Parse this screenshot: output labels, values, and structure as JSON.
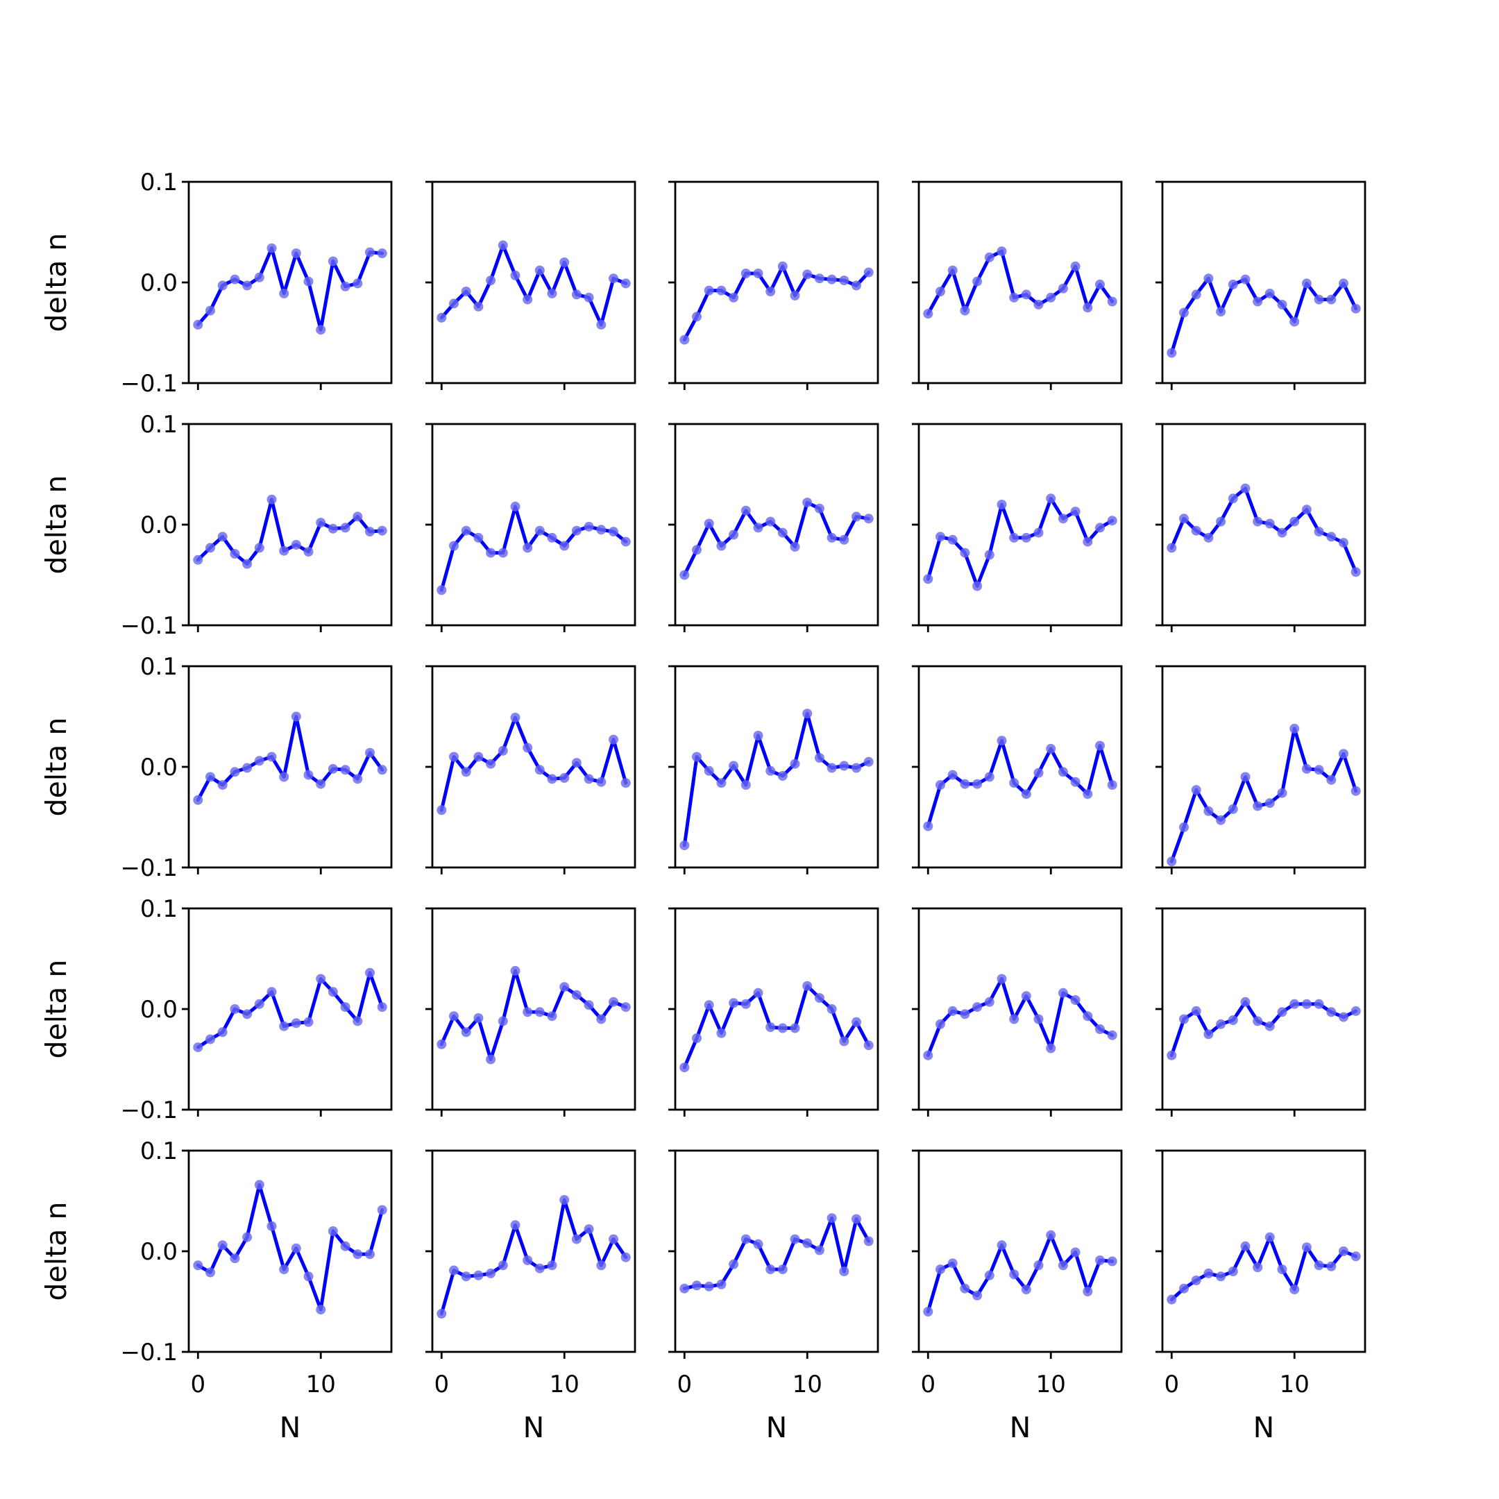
{
  "chart_data": {
    "type": "line",
    "layout": "5x5 grid of subplots",
    "xlabel": "N",
    "ylabel": "delta n",
    "xlim": [
      -0.75,
      15.75
    ],
    "ylim": [
      -0.1,
      0.1
    ],
    "x_ticks": [
      0,
      10
    ],
    "x_tick_labels": [
      "0",
      "10"
    ],
    "y_ticks": [
      0.1,
      0.0,
      -0.1
    ],
    "y_tick_labels": [
      "0.1",
      "0.0",
      "−0.1"
    ],
    "x": [
      0,
      1,
      2,
      3,
      4,
      5,
      6,
      7,
      8,
      9,
      10,
      11,
      12,
      13,
      14,
      15
    ],
    "grid": false,
    "line_color": "#0000ff",
    "marker_color": "#6666ee",
    "panels": [
      [
        -0.042,
        -0.028,
        -0.003,
        0.003,
        -0.003,
        0.005,
        0.034,
        -0.011,
        0.029,
        0.001,
        -0.047,
        0.021,
        -0.004,
        -0.001,
        0.03,
        0.029
      ],
      [
        -0.035,
        -0.021,
        -0.009,
        -0.024,
        0.002,
        0.037,
        0.007,
        -0.017,
        0.012,
        -0.011,
        0.02,
        -0.012,
        -0.015,
        -0.042,
        0.004,
        -0.001
      ],
      [
        -0.057,
        -0.034,
        -0.008,
        -0.008,
        -0.015,
        0.009,
        0.009,
        -0.009,
        0.016,
        -0.013,
        0.008,
        0.004,
        0.003,
        0.002,
        -0.003,
        0.01
      ],
      [
        -0.031,
        -0.009,
        0.012,
        -0.028,
        0.001,
        0.025,
        0.031,
        -0.015,
        -0.012,
        -0.022,
        -0.015,
        -0.006,
        0.016,
        -0.025,
        -0.002,
        -0.019
      ],
      [
        -0.07,
        -0.03,
        -0.012,
        0.004,
        -0.029,
        -0.002,
        0.003,
        -0.019,
        -0.011,
        -0.022,
        -0.039,
        -0.001,
        -0.017,
        -0.017,
        -0.001,
        -0.026
      ],
      [
        -0.035,
        -0.023,
        -0.012,
        -0.029,
        -0.039,
        -0.023,
        0.025,
        -0.026,
        -0.02,
        -0.027,
        0.002,
        -0.004,
        -0.003,
        0.008,
        -0.007,
        -0.006
      ],
      [
        -0.065,
        -0.021,
        -0.006,
        -0.013,
        -0.028,
        -0.028,
        0.018,
        -0.023,
        -0.006,
        -0.013,
        -0.021,
        -0.006,
        -0.002,
        -0.005,
        -0.007,
        -0.017
      ],
      [
        -0.05,
        -0.025,
        0.001,
        -0.021,
        -0.01,
        0.014,
        -0.003,
        0.003,
        -0.008,
        -0.022,
        0.022,
        0.016,
        -0.013,
        -0.015,
        0.008,
        0.006
      ],
      [
        -0.054,
        -0.012,
        -0.015,
        -0.028,
        -0.061,
        -0.03,
        0.02,
        -0.013,
        -0.013,
        -0.008,
        0.026,
        0.006,
        0.013,
        -0.017,
        -0.003,
        0.004
      ],
      [
        -0.023,
        0.006,
        -0.006,
        -0.013,
        0.003,
        0.026,
        0.036,
        0.003,
        0.001,
        -0.008,
        0.003,
        0.015,
        -0.007,
        -0.012,
        -0.018,
        -0.047
      ],
      [
        -0.033,
        -0.01,
        -0.018,
        -0.005,
        -0.001,
        0.006,
        0.01,
        -0.01,
        0.05,
        -0.008,
        -0.017,
        -0.002,
        -0.003,
        -0.012,
        0.014,
        -0.003
      ],
      [
        -0.043,
        0.01,
        -0.005,
        0.01,
        0.003,
        0.016,
        0.049,
        0.019,
        -0.003,
        -0.012,
        -0.011,
        0.004,
        -0.012,
        -0.015,
        0.027,
        -0.016
      ],
      [
        -0.078,
        0.01,
        -0.004,
        -0.016,
        0.001,
        -0.018,
        0.031,
        -0.004,
        -0.009,
        0.003,
        0.053,
        0.009,
        -0.001,
        0.001,
        -0.001,
        0.005
      ],
      [
        -0.059,
        -0.018,
        -0.008,
        -0.017,
        -0.017,
        -0.01,
        0.026,
        -0.016,
        -0.027,
        -0.006,
        0.018,
        -0.005,
        -0.015,
        -0.027,
        0.021,
        -0.018
      ],
      [
        -0.094,
        -0.06,
        -0.023,
        -0.044,
        -0.053,
        -0.042,
        -0.01,
        -0.039,
        -0.036,
        -0.026,
        0.038,
        -0.002,
        -0.003,
        -0.013,
        0.013,
        -0.024
      ],
      [
        -0.038,
        -0.03,
        -0.023,
        0.0,
        -0.005,
        0.005,
        0.017,
        -0.017,
        -0.014,
        -0.013,
        0.03,
        0.017,
        0.002,
        -0.012,
        0.036,
        0.002
      ],
      [
        -0.035,
        -0.007,
        -0.023,
        -0.009,
        -0.05,
        -0.012,
        0.038,
        -0.003,
        -0.003,
        -0.007,
        0.022,
        0.014,
        0.004,
        -0.01,
        0.007,
        0.002
      ],
      [
        -0.058,
        -0.029,
        0.004,
        -0.024,
        0.006,
        0.005,
        0.016,
        -0.018,
        -0.019,
        -0.019,
        0.023,
        0.011,
        0.0,
        -0.032,
        -0.013,
        -0.036
      ],
      [
        -0.046,
        -0.015,
        -0.002,
        -0.005,
        0.002,
        0.007,
        0.03,
        -0.01,
        0.013,
        -0.01,
        -0.039,
        0.016,
        0.009,
        -0.007,
        -0.02,
        -0.026
      ],
      [
        -0.046,
        -0.01,
        -0.002,
        -0.025,
        -0.015,
        -0.011,
        0.007,
        -0.012,
        -0.017,
        -0.003,
        0.005,
        0.005,
        0.005,
        -0.003,
        -0.008,
        -0.002
      ],
      [
        -0.014,
        -0.021,
        0.006,
        -0.007,
        0.014,
        0.066,
        0.025,
        -0.018,
        0.003,
        -0.025,
        -0.058,
        0.02,
        0.005,
        -0.003,
        -0.003,
        0.041
      ],
      [
        -0.062,
        -0.019,
        -0.025,
        -0.024,
        -0.022,
        -0.014,
        0.026,
        -0.009,
        -0.017,
        -0.014,
        0.051,
        0.012,
        0.022,
        -0.014,
        0.012,
        -0.006
      ],
      [
        -0.037,
        -0.034,
        -0.035,
        -0.033,
        -0.013,
        0.012,
        0.007,
        -0.018,
        -0.018,
        0.012,
        0.008,
        0.001,
        0.033,
        -0.02,
        0.032,
        0.01
      ],
      [
        -0.06,
        -0.018,
        -0.012,
        -0.037,
        -0.044,
        -0.024,
        0.006,
        -0.023,
        -0.038,
        -0.014,
        0.016,
        -0.014,
        -0.001,
        -0.04,
        -0.009,
        -0.01
      ],
      [
        -0.048,
        -0.037,
        -0.029,
        -0.022,
        -0.025,
        -0.02,
        0.005,
        -0.016,
        0.014,
        -0.018,
        -0.038,
        0.004,
        -0.014,
        -0.015,
        0.0,
        -0.005
      ]
    ]
  }
}
